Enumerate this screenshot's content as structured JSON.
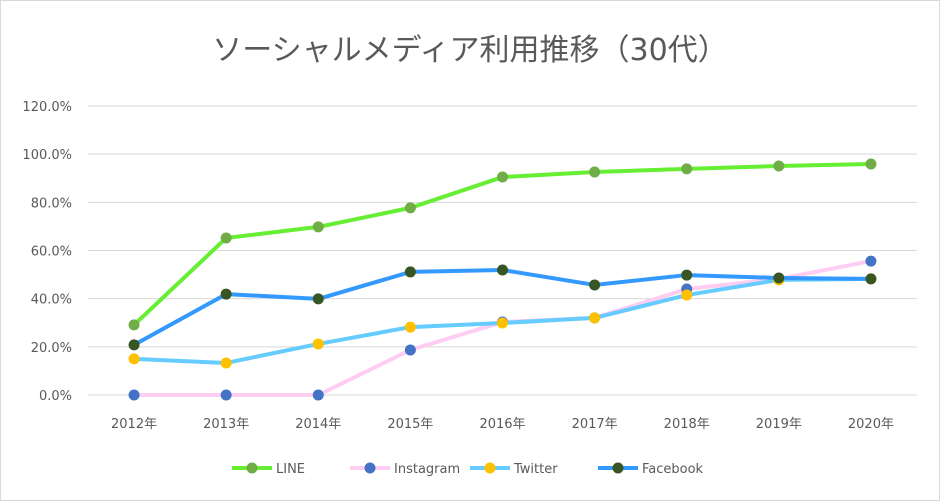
{
  "chart_data": {
    "type": "line",
    "title": "ソーシャルメディア利用推移（30代）",
    "categories": [
      "2012年",
      "2013年",
      "2014年",
      "2015年",
      "2016年",
      "2017年",
      "2018年",
      "2019年",
      "2020年"
    ],
    "ylim": [
      0,
      120
    ],
    "yticks": [
      "0.0%",
      "20.0%",
      "40.0%",
      "60.0%",
      "80.0%",
      "100.0%",
      "120.0%"
    ],
    "grid": true,
    "legend_position": "bottom",
    "series": [
      {
        "name": "LINE",
        "line_color": "#66ee33",
        "marker_color": "#70ad47",
        "values": [
          29.1,
          65.2,
          69.8,
          77.7,
          90.5,
          92.6,
          93.9,
          95.1,
          95.9
        ]
      },
      {
        "name": "Instagram",
        "line_color": "#ffccf2",
        "marker_color": "#4472c4",
        "values": [
          0,
          0,
          0,
          18.7,
          30.3,
          32.0,
          44.0,
          48.2,
          55.6
        ]
      },
      {
        "name": "Twitter",
        "line_color": "#66ccff",
        "marker_color": "#ffc000",
        "values": [
          15.0,
          13.3,
          21.2,
          28.2,
          29.9,
          32.0,
          41.5,
          47.8,
          48.2
        ]
      },
      {
        "name": "Facebook",
        "line_color": "#3399ff",
        "marker_color": "#375623",
        "values": [
          20.8,
          41.9,
          39.9,
          51.1,
          51.9,
          45.7,
          49.8,
          48.6,
          48.2
        ]
      }
    ]
  }
}
